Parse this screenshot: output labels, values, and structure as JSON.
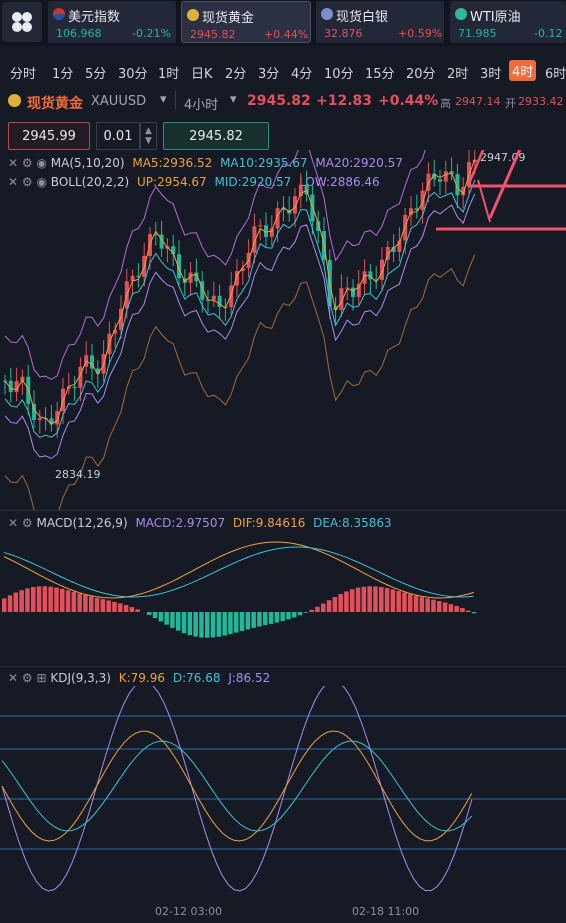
{
  "tickers": [
    {
      "name": "美元指数",
      "price": "106.968",
      "change": "-0.21%",
      "icon": "us-flag-icon",
      "dir": "down"
    },
    {
      "name": "现货黄金",
      "price": "2945.82",
      "change": "+0.44%",
      "icon": "gold-icon",
      "dir": "up"
    },
    {
      "name": "现货白银",
      "price": "32.876",
      "change": "+0.59%",
      "icon": "silver-icon",
      "dir": "up"
    },
    {
      "name": "WTI原油",
      "price": "71.985",
      "change": "-0.12",
      "icon": "oil-icon",
      "dir": "down"
    }
  ],
  "intervals": [
    "分时",
    "1分",
    "5分",
    "30分",
    "1时",
    "日K",
    "2分",
    "3分",
    "4分",
    "10分",
    "15分",
    "20分",
    "2时",
    "3时",
    "4时",
    "6时"
  ],
  "active_interval": "4时",
  "symbol": {
    "name": "现货黄金",
    "code": "XAUUSD",
    "period": "4小时",
    "price": "2945.82",
    "change": "+12.83",
    "change_pct": "+0.44%",
    "high_label": "高",
    "high": "2947.14",
    "open_label": "开",
    "open": "2933.42"
  },
  "order": {
    "sell_price": "2945.99",
    "lots": "0.01",
    "buy_price": "2945.82"
  },
  "indicators": {
    "ma": {
      "label": "MA(5,10,20)",
      "ma5": "MA5:2936.52",
      "ma10": "MA10:2935.67",
      "ma20": "MA20:2920.57"
    },
    "boll": {
      "label": "BOLL(20,2,2)",
      "up": "UP:2954.67",
      "mid": "MID:2920.57",
      "low": "LOW:2886.46"
    },
    "macd": {
      "label": "MACD(12,26,9)",
      "macd": "MACD:2.97507",
      "dif": "DIF:9.84616",
      "dea": "DEA:8.35863"
    },
    "kdj": {
      "label": "KDJ(9,3,3)",
      "k": "K:79.96",
      "d": "D:76.68",
      "j": "J:86.52"
    }
  },
  "price_marks": {
    "high": "2947.09",
    "low": "2834.19"
  },
  "time_axis": [
    "02-12 03:00",
    "02-18 11:00"
  ],
  "colors": {
    "up": "#e2505c",
    "down": "#1fb89a",
    "ma5": "#f0a13c",
    "ma10": "#3fc1d6",
    "ma20": "#a98bf0",
    "accent": "#f06a3a",
    "annot": "#f2526b"
  }
}
